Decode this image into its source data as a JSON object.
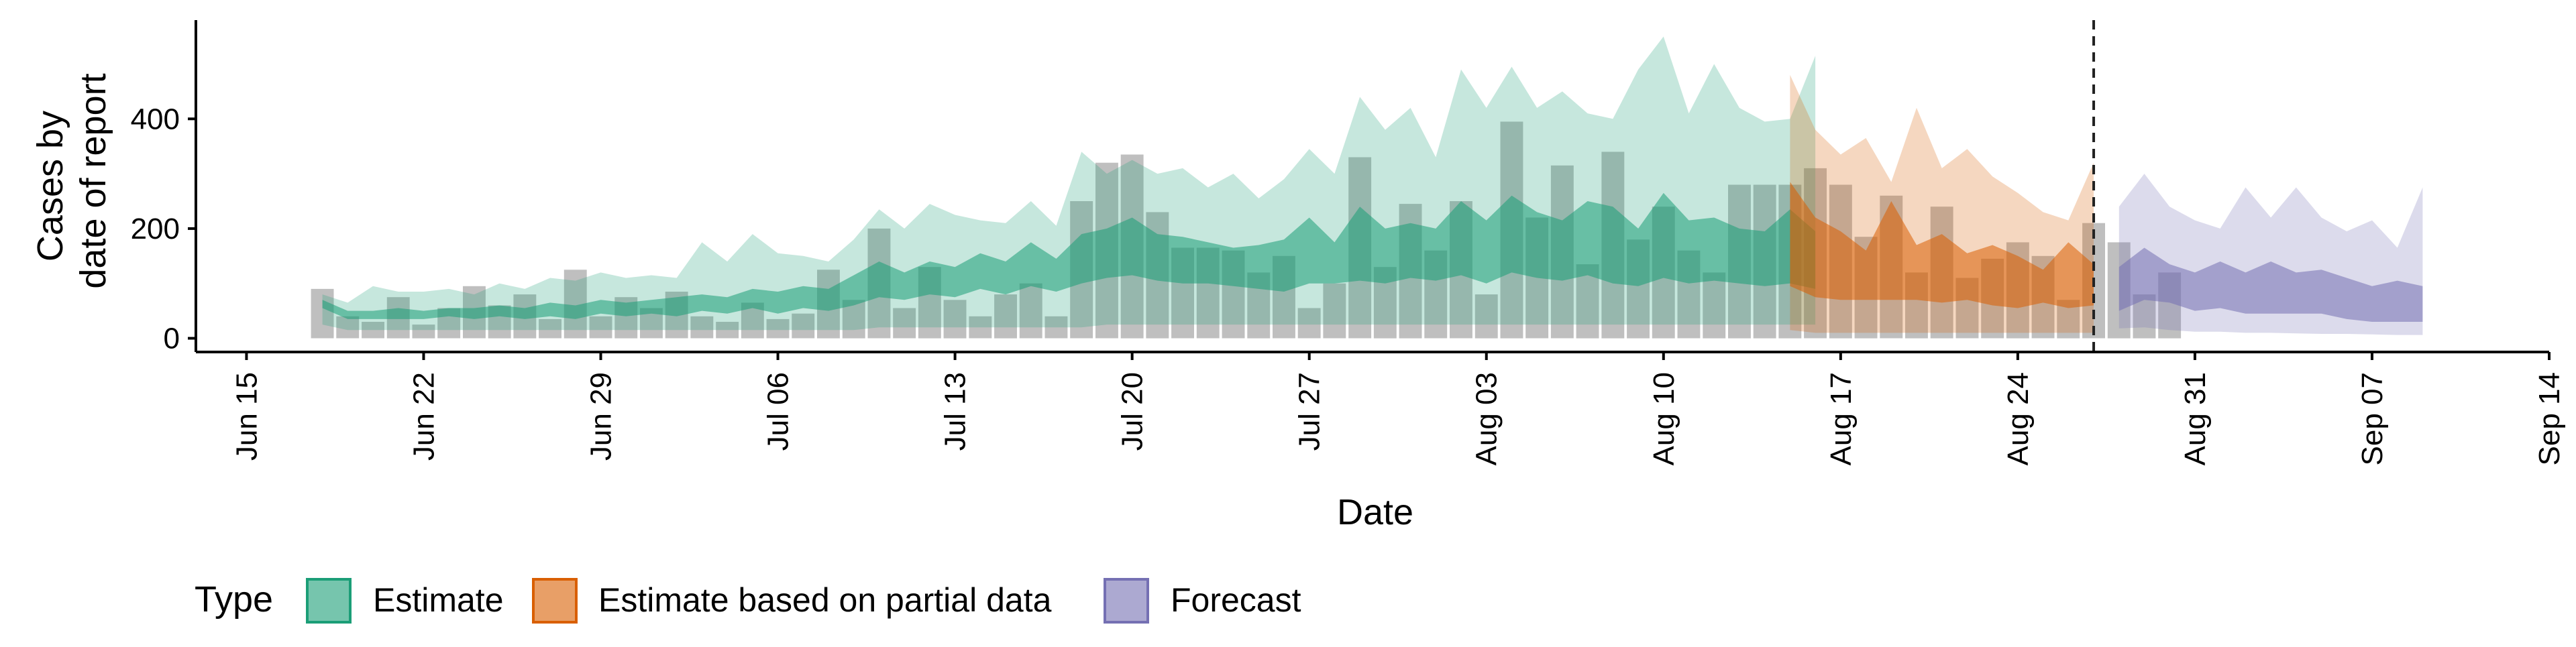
{
  "chart_data": {
    "type": "area",
    "xlabel": "Date",
    "ylabel_lines": [
      "Cases by",
      "date of report"
    ],
    "x_range": [
      "2020-06-13",
      "2020-09-14"
    ],
    "ylim": [
      -25,
      580
    ],
    "y_ticks": [
      0,
      200,
      400
    ],
    "x_ticks": [
      {
        "date": "2020-06-15",
        "label": "Jun 15"
      },
      {
        "date": "2020-06-22",
        "label": "Jun 22"
      },
      {
        "date": "2020-06-29",
        "label": "Jun 29"
      },
      {
        "date": "2020-07-06",
        "label": "Jul 06"
      },
      {
        "date": "2020-07-13",
        "label": "Jul 13"
      },
      {
        "date": "2020-07-20",
        "label": "Jul 20"
      },
      {
        "date": "2020-07-27",
        "label": "Jul 27"
      },
      {
        "date": "2020-08-03",
        "label": "Aug 03"
      },
      {
        "date": "2020-08-10",
        "label": "Aug 10"
      },
      {
        "date": "2020-08-17",
        "label": "Aug 17"
      },
      {
        "date": "2020-08-24",
        "label": "Aug 24"
      },
      {
        "date": "2020-08-31",
        "label": "Aug 31"
      },
      {
        "date": "2020-09-07",
        "label": "Sep 07"
      },
      {
        "date": "2020-09-14",
        "label": "Sep 14"
      }
    ],
    "vline_date": "2020-08-27",
    "grid": false,
    "legend_position": "bottom-left",
    "legend_title": "Type",
    "colors": {
      "estimate": "#1b9e77",
      "partial": "#d95f02",
      "forecast": "#7570b3",
      "bars": "#808080"
    },
    "reported_cases": {
      "start_date": "2020-06-18",
      "values": [
        90,
        40,
        30,
        75,
        25,
        55,
        95,
        60,
        80,
        35,
        125,
        40,
        75,
        55,
        85,
        40,
        30,
        65,
        35,
        45,
        125,
        70,
        200,
        55,
        130,
        70,
        40,
        80,
        100,
        40,
        250,
        320,
        335,
        230,
        165,
        165,
        160,
        120,
        150,
        55,
        100,
        330,
        130,
        245,
        160,
        250,
        80,
        395,
        220,
        315,
        135,
        340,
        180,
        240,
        160,
        120,
        280,
        280,
        280,
        310,
        280,
        185,
        260,
        120,
        240,
        110,
        145,
        175,
        150,
        70,
        210,
        175,
        80,
        120
      ]
    },
    "series": [
      {
        "name": "Estimate",
        "start_date": "2020-06-18",
        "lower90": [
          25,
          15,
          15,
          15,
          15,
          15,
          15,
          15,
          15,
          15,
          15,
          15,
          15,
          15,
          15,
          15,
          15,
          15,
          15,
          15,
          15,
          15,
          20,
          20,
          20,
          20,
          20,
          20,
          20,
          20,
          20,
          25,
          25,
          25,
          25,
          25,
          25,
          25,
          25,
          25,
          25,
          25,
          25,
          25,
          25,
          25,
          25,
          25,
          25,
          25,
          25,
          25,
          25,
          25,
          25,
          25,
          25,
          25,
          25,
          25
        ],
        "lower50": [
          55,
          35,
          35,
          35,
          35,
          40,
          35,
          40,
          35,
          40,
          35,
          45,
          40,
          45,
          40,
          50,
          45,
          55,
          45,
          55,
          50,
          60,
          75,
          70,
          80,
          75,
          90,
          80,
          95,
          85,
          100,
          110,
          115,
          105,
          100,
          100,
          95,
          90,
          85,
          100,
          100,
          105,
          100,
          110,
          105,
          115,
          100,
          120,
          110,
          105,
          115,
          100,
          95,
          110,
          100,
          105,
          100,
          95,
          100,
          90
        ],
        "upper50": [
          70,
          50,
          50,
          55,
          50,
          55,
          55,
          60,
          55,
          65,
          60,
          70,
          65,
          70,
          75,
          80,
          75,
          90,
          85,
          95,
          90,
          115,
          140,
          120,
          140,
          130,
          155,
          140,
          175,
          145,
          190,
          200,
          220,
          190,
          185,
          175,
          165,
          170,
          180,
          220,
          175,
          240,
          200,
          210,
          200,
          250,
          215,
          260,
          230,
          215,
          250,
          240,
          200,
          265,
          215,
          220,
          200,
          195,
          235,
          195
        ],
        "upper90": [
          80,
          65,
          95,
          85,
          85,
          90,
          80,
          100,
          90,
          110,
          105,
          120,
          110,
          115,
          110,
          175,
          140,
          190,
          155,
          150,
          140,
          180,
          235,
          200,
          245,
          225,
          215,
          210,
          250,
          205,
          340,
          300,
          325,
          300,
          310,
          275,
          300,
          255,
          290,
          345,
          300,
          440,
          380,
          420,
          330,
          490,
          420,
          495,
          420,
          450,
          410,
          400,
          490,
          550,
          410,
          500,
          420,
          395,
          400,
          515
        ]
      },
      {
        "name": "Estimate based on partial data",
        "start_date": "2020-08-15",
        "lower90": [
          15,
          10,
          10,
          10,
          10,
          10,
          10,
          10,
          10,
          10,
          10,
          10,
          10
        ],
        "lower50": [
          95,
          75,
          70,
          70,
          70,
          70,
          65,
          70,
          60,
          55,
          65,
          55,
          60
        ],
        "upper50": [
          285,
          220,
          195,
          160,
          250,
          170,
          190,
          155,
          170,
          150,
          125,
          175,
          135
        ],
        "upper90": [
          480,
          380,
          335,
          365,
          285,
          420,
          310,
          345,
          295,
          265,
          230,
          215,
          320
        ]
      },
      {
        "name": "Forecast",
        "start_date": "2020-08-28",
        "lower90": [
          18,
          20,
          15,
          12,
          12,
          10,
          10,
          9,
          8,
          8,
          7,
          6,
          6
        ],
        "lower50": [
          50,
          70,
          65,
          50,
          55,
          45,
          45,
          45,
          45,
          35,
          30,
          30,
          30
        ],
        "upper50": [
          130,
          165,
          135,
          120,
          140,
          120,
          140,
          120,
          125,
          110,
          95,
          105,
          95
        ],
        "upper90": [
          240,
          300,
          240,
          215,
          200,
          275,
          220,
          275,
          220,
          195,
          215,
          165,
          275
        ]
      }
    ]
  },
  "legend": {
    "title": "Type",
    "items": [
      {
        "key": "estimate",
        "label": "Estimate"
      },
      {
        "key": "partial",
        "label": "Estimate based on partial data"
      },
      {
        "key": "forecast",
        "label": "Forecast"
      }
    ]
  }
}
